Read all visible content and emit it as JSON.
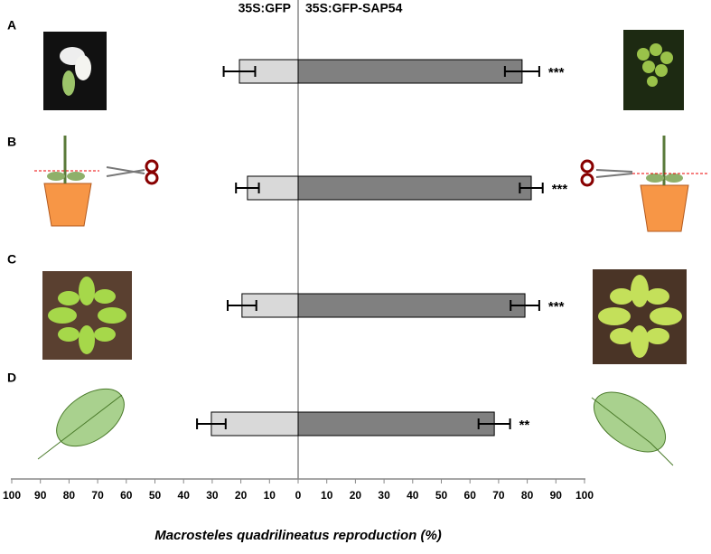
{
  "chart_data": {
    "type": "butterfly-bar",
    "categories": [
      "A",
      "B",
      "C",
      "D"
    ],
    "series": [
      {
        "name": "35S:GFP",
        "color": "#d9d9d9",
        "side": "left",
        "values": [
          20.5,
          17.7,
          19.6,
          30.3
        ],
        "errors": [
          5.5,
          4,
          5,
          5
        ]
      },
      {
        "name": "35S:GFP-SAP54",
        "color": "#808080",
        "side": "right",
        "values": [
          78.2,
          81.4,
          79.2,
          68.5
        ],
        "errors": [
          6,
          4,
          5,
          5.5
        ],
        "annotations": [
          "***",
          "***",
          "***",
          "**"
        ]
      }
    ],
    "xlim": [
      0,
      100
    ],
    "xticks": [
      0,
      10,
      20,
      30,
      40,
      50,
      60,
      70,
      80,
      90,
      100
    ],
    "xlabel": "Macrosteles quadrilineatus reproduction (%)"
  }
}
